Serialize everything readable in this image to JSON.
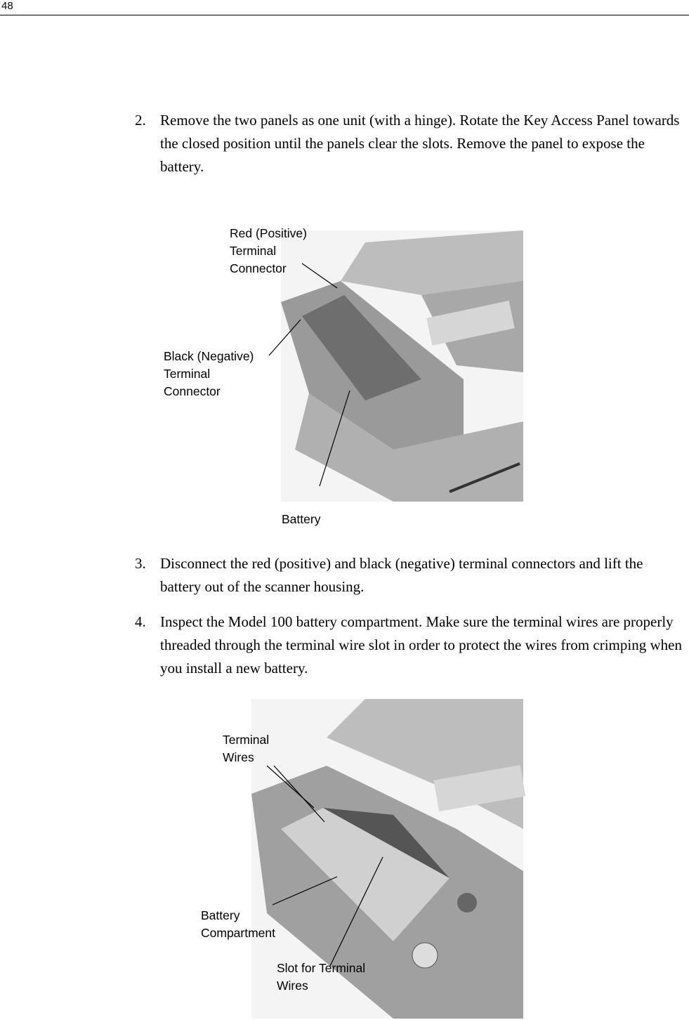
{
  "header": {
    "page_number": "48"
  },
  "steps": [
    {
      "number": "2.",
      "text": "Remove the two panels as one unit (with a hinge). Rotate the Key Access Panel towards the closed position until the panels clear the slots. Remove the panel to expose the battery."
    },
    {
      "number": "3.",
      "text": "Disconnect the red (positive) and black (negative) terminal connectors and lift the battery out of the scanner housing."
    },
    {
      "number": "4.",
      "text": "Inspect the Model 100 battery compartment. Make sure the terminal wires are properly threaded through the terminal wire slot in order to protect the wires from crimping when you install a new battery."
    }
  ],
  "figures": [
    {
      "labels": [
        {
          "lines": [
            "Red (Positive)",
            "Terminal",
            "Connector"
          ]
        },
        {
          "lines": [
            "Black (Negative)",
            "Terminal",
            "Connector"
          ]
        },
        {
          "lines": [
            "Battery"
          ]
        }
      ]
    },
    {
      "labels": [
        {
          "lines": [
            "Terminal",
            "Wires"
          ]
        },
        {
          "lines": [
            "Battery",
            "Compartment"
          ]
        },
        {
          "lines": [
            "Slot for Terminal",
            "Wires"
          ]
        }
      ]
    }
  ]
}
